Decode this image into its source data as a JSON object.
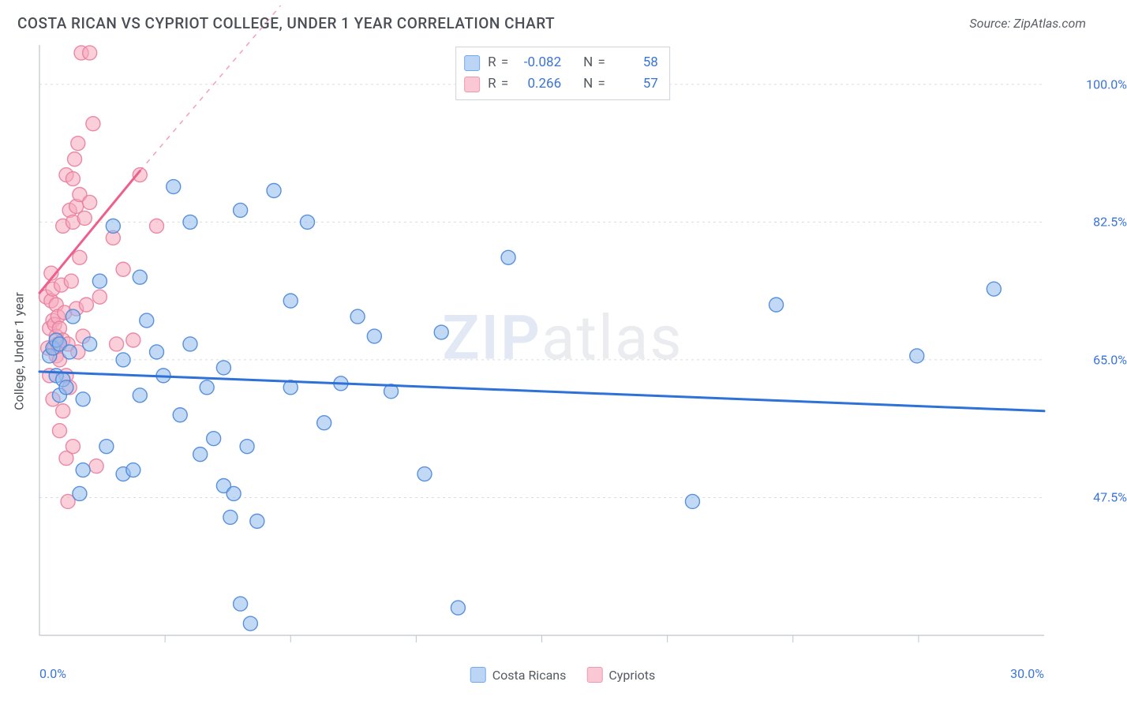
{
  "header": {
    "title": "COSTA RICAN VS CYPRIOT COLLEGE, UNDER 1 YEAR CORRELATION CHART",
    "source": "Source: ZipAtlas.com"
  },
  "watermark": {
    "part1": "ZIP",
    "part2": "atlas"
  },
  "axes": {
    "y_label": "College, Under 1 year",
    "x_domain": [
      0,
      30
    ],
    "y_domain": [
      30,
      105
    ],
    "x_ticks_major": [
      0,
      30
    ],
    "x_ticks_minor": [
      3.75,
      7.5,
      11.25,
      15,
      18.75,
      22.5,
      26.25
    ],
    "x_tick_labels": {
      "0": "0.0%",
      "30": "30.0%"
    },
    "y_ticks": [
      47.5,
      65.0,
      82.5,
      100.0
    ],
    "y_tick_labels": {
      "47.5": "47.5%",
      "65.0": "65.0%",
      "82.5": "82.5%",
      "100.0": "100.0%"
    },
    "grid_color": "#d9dce0",
    "axis_color": "#bfc4ca",
    "label_color": "#3a74d8",
    "label_fontsize": 16
  },
  "stats_legend": {
    "rows": [
      {
        "swatch_fill": "#bcd5f5",
        "swatch_stroke": "#6faaf0",
        "r_label": "R =",
        "r_value": "-0.082",
        "n_label": "N =",
        "n_value": "58"
      },
      {
        "swatch_fill": "#f9c8d4",
        "swatch_stroke": "#ef99ae",
        "r_label": "R =",
        "r_value": "0.266",
        "n_label": "N =",
        "n_value": "57"
      }
    ]
  },
  "series_legend": {
    "items": [
      {
        "swatch_fill": "#bcd5f5",
        "swatch_stroke": "#6faaf0",
        "label": "Costa Ricans"
      },
      {
        "swatch_fill": "#f9c8d4",
        "swatch_stroke": "#ef99ae",
        "label": "Cypriots"
      }
    ]
  },
  "regressions": {
    "blue": {
      "color": "#2e71d8",
      "width": 3,
      "p1": [
        0,
        63.5
      ],
      "p2": [
        30,
        58.5
      ],
      "dash_extend_to": null
    },
    "pink": {
      "color": "#ee5f8b",
      "width": 3,
      "p1": [
        0,
        73.5
      ],
      "p2": [
        3.0,
        89.0
      ],
      "dash_extend_to": [
        7.2,
        110
      ]
    }
  },
  "markers": {
    "radius": 9,
    "fill_opacity": 0.55,
    "stroke_opacity": 0.9,
    "stroke_width": 1.4,
    "blue": {
      "fill": "#8fb9ef",
      "stroke": "#4a86d8"
    },
    "pink": {
      "fill": "#f5a8bb",
      "stroke": "#e97d9d"
    }
  },
  "data": {
    "costa_ricans": [
      [
        0.3,
        65.5
      ],
      [
        0.4,
        66.5
      ],
      [
        0.5,
        63.0
      ],
      [
        0.5,
        67.5
      ],
      [
        0.6,
        60.5
      ],
      [
        0.6,
        67.0
      ],
      [
        0.7,
        62.5
      ],
      [
        0.8,
        61.5
      ],
      [
        0.9,
        66.0
      ],
      [
        1.0,
        70.5
      ],
      [
        1.2,
        48.0
      ],
      [
        1.3,
        51.0
      ],
      [
        1.3,
        60.0
      ],
      [
        1.5,
        67.0
      ],
      [
        1.8,
        75.0
      ],
      [
        2.0,
        54.0
      ],
      [
        2.2,
        82.0
      ],
      [
        2.5,
        50.5
      ],
      [
        2.5,
        65.0
      ],
      [
        2.8,
        51.0
      ],
      [
        3.0,
        60.5
      ],
      [
        3.0,
        75.5
      ],
      [
        3.2,
        70.0
      ],
      [
        3.5,
        66.0
      ],
      [
        3.7,
        63.0
      ],
      [
        4.0,
        87.0
      ],
      [
        4.2,
        58.0
      ],
      [
        4.5,
        82.5
      ],
      [
        4.5,
        67.0
      ],
      [
        4.8,
        53.0
      ],
      [
        5.0,
        61.5
      ],
      [
        5.2,
        55.0
      ],
      [
        5.5,
        64.0
      ],
      [
        5.5,
        49.0
      ],
      [
        5.7,
        45.0
      ],
      [
        5.8,
        48.0
      ],
      [
        6.0,
        34.0
      ],
      [
        6.0,
        84.0
      ],
      [
        6.2,
        54.0
      ],
      [
        6.3,
        31.5
      ],
      [
        6.5,
        44.5
      ],
      [
        7.0,
        86.5
      ],
      [
        7.5,
        61.5
      ],
      [
        7.5,
        72.5
      ],
      [
        8.0,
        82.5
      ],
      [
        8.5,
        57.0
      ],
      [
        9.0,
        62.0
      ],
      [
        9.5,
        70.5
      ],
      [
        10.0,
        68.0
      ],
      [
        10.5,
        61.0
      ],
      [
        11.5,
        50.5
      ],
      [
        12.0,
        68.5
      ],
      [
        12.5,
        33.5
      ],
      [
        14.0,
        78.0
      ],
      [
        19.5,
        47.0
      ],
      [
        22.0,
        72.0
      ],
      [
        26.2,
        65.5
      ],
      [
        28.5,
        74.0
      ]
    ],
    "cypriots": [
      [
        0.2,
        73.0
      ],
      [
        0.25,
        66.5
      ],
      [
        0.3,
        69.0
      ],
      [
        0.3,
        63.0
      ],
      [
        0.35,
        72.5
      ],
      [
        0.35,
        76.0
      ],
      [
        0.4,
        60.0
      ],
      [
        0.4,
        70.0
      ],
      [
        0.4,
        74.0
      ],
      [
        0.45,
        66.5
      ],
      [
        0.45,
        69.5
      ],
      [
        0.5,
        65.5
      ],
      [
        0.5,
        68.0
      ],
      [
        0.5,
        72.0
      ],
      [
        0.55,
        67.0
      ],
      [
        0.55,
        70.5
      ],
      [
        0.6,
        56.0
      ],
      [
        0.6,
        65.0
      ],
      [
        0.6,
        69.0
      ],
      [
        0.65,
        74.5
      ],
      [
        0.7,
        58.5
      ],
      [
        0.7,
        67.5
      ],
      [
        0.7,
        82.0
      ],
      [
        0.75,
        71.0
      ],
      [
        0.8,
        52.5
      ],
      [
        0.8,
        63.0
      ],
      [
        0.8,
        88.5
      ],
      [
        0.85,
        47.0
      ],
      [
        0.85,
        67.0
      ],
      [
        0.9,
        84.0
      ],
      [
        0.9,
        61.5
      ],
      [
        0.95,
        75.0
      ],
      [
        1.0,
        82.5
      ],
      [
        1.0,
        88.0
      ],
      [
        1.0,
        54.0
      ],
      [
        1.05,
        90.5
      ],
      [
        1.1,
        71.5
      ],
      [
        1.1,
        84.5
      ],
      [
        1.15,
        92.5
      ],
      [
        1.15,
        66.0
      ],
      [
        1.2,
        86.0
      ],
      [
        1.2,
        78.0
      ],
      [
        1.25,
        104.0
      ],
      [
        1.3,
        68.0
      ],
      [
        1.35,
        83.0
      ],
      [
        1.4,
        72.0
      ],
      [
        1.5,
        85.0
      ],
      [
        1.5,
        104.0
      ],
      [
        1.6,
        95.0
      ],
      [
        1.7,
        51.5
      ],
      [
        1.8,
        73.0
      ],
      [
        2.2,
        80.5
      ],
      [
        2.3,
        67.0
      ],
      [
        2.5,
        76.5
      ],
      [
        2.8,
        67.5
      ],
      [
        3.0,
        88.5
      ],
      [
        3.5,
        82.0
      ]
    ]
  }
}
